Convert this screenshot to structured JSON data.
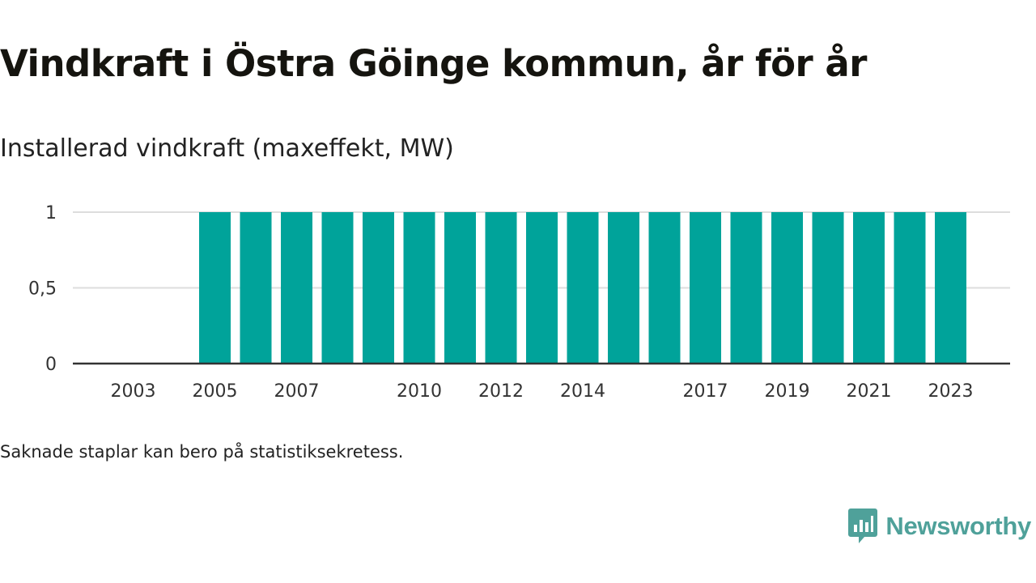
{
  "title": "Vindkraft i Östra Göinge kommun, år för år",
  "subtitle": "Installerad vindkraft (maxeffekt, MW)",
  "note": "Saknade staplar kan bero på statistiksekretess.",
  "brand": {
    "name": "Newsworthy",
    "icon": "newsworthy-logo-icon"
  },
  "colors": {
    "bar": "#00a39a",
    "grid": "#dddddd",
    "axis": "#333333",
    "brand": "#4fa19a"
  },
  "chart_data": {
    "type": "bar",
    "categories": [
      "2003",
      "2004",
      "2005",
      "2006",
      "2007",
      "2008",
      "2009",
      "2010",
      "2011",
      "2012",
      "2013",
      "2014",
      "2015",
      "2016",
      "2017",
      "2018",
      "2019",
      "2020",
      "2021",
      "2022",
      "2023"
    ],
    "values": [
      null,
      null,
      1,
      1,
      1,
      1,
      1,
      1,
      1,
      1,
      1,
      1,
      1,
      1,
      1,
      1,
      1,
      1,
      1,
      1,
      1
    ],
    "xtick_labels": [
      "2003",
      "2005",
      "2007",
      "2010",
      "2012",
      "2014",
      "2017",
      "2019",
      "2021",
      "2023"
    ],
    "ytick_labels": [
      "0",
      "0,5",
      "1"
    ],
    "yticks": [
      0,
      0.5,
      1
    ],
    "ylim": [
      0,
      1
    ],
    "xlabel": "",
    "ylabel": "Installerad vindkraft (maxeffekt, MW)",
    "grid": true,
    "legend": "none"
  }
}
